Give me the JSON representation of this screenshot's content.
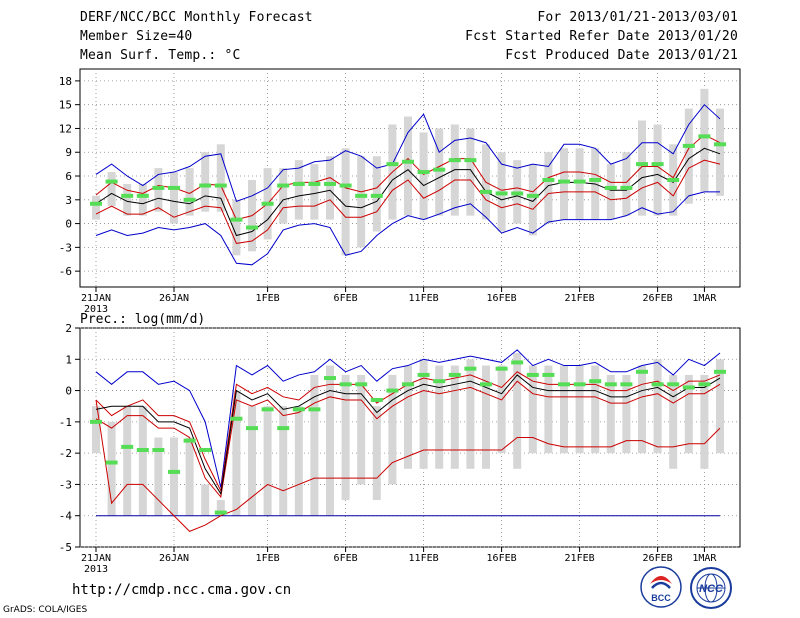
{
  "header": {
    "title": "DERF/NCC/BCC Monthly Forecast",
    "member_size": "Member Size=40",
    "variable": "Mean Surf. Temp.: °C",
    "for_range": "For 2013/01/21-2013/03/01",
    "fcst_started": "Fcst Started Refer Date 2013/01/20",
    "fcst_produced": "Fcst Produced Date 2013/01/21"
  },
  "footer": {
    "url": "http://cmdp.ncc.cma.gov.cn",
    "grads": "GrADS: COLA/IGES",
    "logo_bcc": "BCC",
    "logo_ncc": "NCC"
  },
  "colors": {
    "ensemble_max": "#0000cc",
    "ensemble_spread": "#cc0000",
    "ensemble_mean": "#000000",
    "bar": "#d6d6d6",
    "marker": "#55dd55",
    "baseline": "#0000aa"
  },
  "chart_data": [
    {
      "type": "line",
      "title": "Mean Surf. Temp.: °C",
      "ylim": [
        -8,
        19.5
      ],
      "yticks": [
        -6,
        -3,
        0,
        3,
        6,
        9,
        12,
        15,
        18
      ],
      "xlim": [
        0,
        41
      ],
      "xticks": [
        {
          "day": 0,
          "label": "21JAN"
        },
        {
          "day": 5,
          "label": "26JAN"
        },
        {
          "day": 11,
          "label": "1FEB"
        },
        {
          "day": 16,
          "label": "6FEB"
        },
        {
          "day": 21,
          "label": "11FEB"
        },
        {
          "day": 26,
          "label": "16FEB"
        },
        {
          "day": 31,
          "label": "21FEB"
        },
        {
          "day": 36,
          "label": "26FEB"
        },
        {
          "day": 39,
          "label": "1MAR"
        }
      ],
      "year_label": "2013",
      "x": [
        0,
        1,
        2,
        3,
        4,
        5,
        6,
        7,
        8,
        9,
        10,
        11,
        12,
        13,
        14,
        15,
        16,
        17,
        18,
        19,
        20,
        21,
        22,
        23,
        24,
        25,
        26,
        27,
        28,
        29,
        30,
        31,
        32,
        33,
        34,
        35,
        36,
        37,
        38,
        39,
        40
      ],
      "series": [
        {
          "name": "max",
          "values": [
            6.2,
            7.5,
            6.0,
            4.8,
            6.2,
            6.5,
            7.2,
            8.5,
            8.8,
            2.8,
            3.5,
            4.5,
            6.8,
            7.0,
            7.8,
            8.0,
            9.2,
            8.5,
            7.0,
            7.5,
            11.5,
            13.8,
            9.0,
            10.5,
            10.8,
            10.2,
            7.5,
            7.0,
            7.5,
            7.2,
            10.0,
            10.0,
            9.5,
            7.5,
            8.2,
            10.2,
            10.2,
            8.8,
            12.5,
            15.0,
            13.2
          ]
        },
        {
          "name": "upper",
          "values": [
            3.6,
            5.2,
            4.2,
            3.8,
            4.8,
            4.5,
            3.8,
            5.0,
            4.8,
            0.5,
            1.0,
            2.5,
            4.8,
            5.2,
            5.2,
            5.8,
            4.5,
            4.0,
            4.5,
            6.5,
            8.2,
            6.2,
            7.2,
            8.2,
            8.2,
            5.2,
            4.2,
            4.5,
            4.0,
            5.8,
            6.5,
            6.5,
            6.2,
            5.2,
            5.2,
            7.2,
            7.2,
            5.8,
            9.5,
            11.2,
            10.2
          ]
        },
        {
          "name": "mean",
          "values": [
            2.5,
            3.8,
            2.8,
            2.5,
            3.2,
            2.8,
            2.5,
            3.5,
            3.2,
            -1.5,
            -1.0,
            0.5,
            3.0,
            3.5,
            3.8,
            4.2,
            2.2,
            2.0,
            2.8,
            5.5,
            6.8,
            4.8,
            5.8,
            6.8,
            6.8,
            4.0,
            3.0,
            3.5,
            2.8,
            4.8,
            5.2,
            5.2,
            5.0,
            4.2,
            4.2,
            5.8,
            6.2,
            5.2,
            8.2,
            9.5,
            8.8
          ]
        },
        {
          "name": "lower",
          "values": [
            1.2,
            2.2,
            1.2,
            1.2,
            2.0,
            0.8,
            1.5,
            2.2,
            2.0,
            -2.5,
            -2.2,
            -0.8,
            2.0,
            2.2,
            2.2,
            3.0,
            0.8,
            0.8,
            1.5,
            4.2,
            5.5,
            3.2,
            4.2,
            5.5,
            5.5,
            3.0,
            2.0,
            2.5,
            1.8,
            3.8,
            4.0,
            4.0,
            4.0,
            3.0,
            3.2,
            4.5,
            5.2,
            3.5,
            7.0,
            8.0,
            7.5
          ]
        },
        {
          "name": "min",
          "values": [
            -1.5,
            -0.8,
            -1.5,
            -1.2,
            -0.5,
            -0.8,
            -0.5,
            0.0,
            -1.5,
            -5.0,
            -5.2,
            -3.8,
            -0.8,
            -0.2,
            0.0,
            -0.5,
            -4.0,
            -3.5,
            -1.5,
            0.0,
            1.0,
            0.5,
            1.2,
            2.0,
            2.5,
            0.8,
            -1.2,
            -0.5,
            -1.2,
            0.2,
            0.5,
            0.5,
            0.5,
            0.5,
            1.0,
            2.0,
            1.2,
            1.5,
            3.5,
            4.0,
            4.0
          ]
        },
        {
          "name": "bar_low",
          "values": [
            0.5,
            2.2,
            1.0,
            1.0,
            1.5,
            0.0,
            1.0,
            1.5,
            1.5,
            -4.0,
            -3.5,
            -2.0,
            0.0,
            0.5,
            0.5,
            0.5,
            -4.0,
            -3.0,
            -1.0,
            0.5,
            1.0,
            0.5,
            1.0,
            1.0,
            1.0,
            0.5,
            -1.0,
            0.0,
            -1.5,
            0.0,
            0.5,
            0.5,
            0.5,
            0.5,
            1.0,
            1.0,
            1.0,
            1.0,
            2.5,
            4.0,
            3.5
          ]
        },
        {
          "name": "bar_high",
          "values": [
            3.5,
            6.5,
            5.0,
            5.0,
            7.0,
            6.5,
            7.0,
            9.0,
            10.0,
            3.0,
            5.5,
            7.0,
            7.0,
            8.0,
            7.5,
            8.5,
            9.5,
            8.5,
            8.5,
            12.5,
            13.5,
            11.5,
            12.0,
            12.5,
            12.0,
            10.0,
            9.0,
            8.0,
            7.5,
            9.0,
            9.5,
            9.5,
            9.5,
            7.5,
            9.0,
            13.0,
            12.5,
            10.0,
            14.5,
            17.0,
            14.5
          ]
        },
        {
          "name": "marker",
          "values": [
            2.5,
            5.3,
            3.5,
            3.5,
            4.5,
            4.5,
            3.0,
            4.8,
            4.8,
            0.5,
            -0.5,
            2.5,
            4.8,
            5.0,
            5.0,
            5.0,
            4.8,
            3.5,
            3.5,
            7.5,
            7.8,
            6.5,
            6.8,
            8.0,
            8.0,
            4.0,
            3.8,
            3.8,
            3.5,
            5.5,
            5.3,
            5.3,
            5.5,
            4.5,
            4.5,
            7.5,
            7.5,
            5.5,
            9.8,
            11.0,
            10.0
          ]
        }
      ]
    },
    {
      "type": "line",
      "title": "Prec.: log(mm/d)",
      "ylim": [
        -5,
        2
      ],
      "yticks": [
        -5,
        -4,
        -3,
        -2,
        -1,
        0,
        1,
        2
      ],
      "xlim": [
        0,
        41
      ],
      "xticks": [
        {
          "day": 0,
          "label": "21JAN"
        },
        {
          "day": 5,
          "label": "26JAN"
        },
        {
          "day": 11,
          "label": "1FEB"
        },
        {
          "day": 16,
          "label": "6FEB"
        },
        {
          "day": 21,
          "label": "11FEB"
        },
        {
          "day": 26,
          "label": "16FEB"
        },
        {
          "day": 31,
          "label": "21FEB"
        },
        {
          "day": 36,
          "label": "26FEB"
        },
        {
          "day": 39,
          "label": "1MAR"
        }
      ],
      "year_label": "2013",
      "x": [
        0,
        1,
        2,
        3,
        4,
        5,
        6,
        7,
        8,
        9,
        10,
        11,
        12,
        13,
        14,
        15,
        16,
        17,
        18,
        19,
        20,
        21,
        22,
        23,
        24,
        25,
        26,
        27,
        28,
        29,
        30,
        31,
        32,
        33,
        34,
        35,
        36,
        37,
        38,
        39,
        40
      ],
      "series": [
        {
          "name": "max",
          "values": [
            0.6,
            0.2,
            0.6,
            0.6,
            0.2,
            0.3,
            0.0,
            -1.0,
            -3.1,
            0.8,
            0.5,
            0.8,
            0.3,
            0.5,
            0.6,
            1.0,
            0.6,
            0.8,
            0.3,
            0.7,
            0.8,
            1.0,
            0.9,
            1.0,
            1.1,
            1.0,
            0.9,
            1.3,
            0.8,
            1.0,
            0.8,
            0.8,
            0.9,
            0.6,
            0.6,
            0.8,
            0.9,
            0.5,
            1.0,
            0.8,
            1.2
          ]
        },
        {
          "name": "upper",
          "values": [
            -0.3,
            -0.8,
            -0.5,
            -0.3,
            -0.8,
            -0.8,
            -1.0,
            -2.2,
            -3.2,
            0.2,
            -0.1,
            0.1,
            -0.2,
            -0.3,
            0.1,
            0.2,
            0.2,
            0.2,
            -0.4,
            -0.1,
            0.2,
            0.4,
            0.3,
            0.4,
            0.5,
            0.3,
            0.1,
            0.6,
            0.3,
            0.2,
            0.2,
            0.2,
            0.2,
            0.0,
            0.0,
            0.2,
            0.3,
            0.0,
            0.3,
            0.3,
            0.5
          ]
        },
        {
          "name": "mean",
          "values": [
            -0.6,
            -0.5,
            -0.5,
            -0.5,
            -1.0,
            -1.0,
            -1.2,
            -2.5,
            -3.3,
            0.0,
            -0.3,
            -0.1,
            -0.6,
            -0.5,
            -0.2,
            0.0,
            -0.1,
            -0.1,
            -0.7,
            -0.3,
            0.0,
            0.2,
            0.1,
            0.2,
            0.3,
            0.1,
            -0.1,
            0.5,
            0.1,
            0.0,
            0.0,
            0.0,
            0.0,
            -0.2,
            -0.2,
            0.0,
            0.1,
            -0.2,
            0.1,
            0.1,
            0.4
          ]
        },
        {
          "name": "lower",
          "values": [
            -0.9,
            -1.2,
            -0.8,
            -0.8,
            -1.2,
            -1.2,
            -1.5,
            -2.8,
            -3.4,
            -0.3,
            -0.5,
            -0.3,
            -0.8,
            -0.7,
            -0.4,
            -0.2,
            -0.3,
            -0.3,
            -0.9,
            -0.5,
            -0.2,
            0.0,
            -0.1,
            0.0,
            0.1,
            -0.1,
            -0.3,
            0.3,
            -0.1,
            -0.2,
            -0.2,
            -0.2,
            -0.2,
            -0.4,
            -0.4,
            -0.2,
            -0.1,
            -0.4,
            -0.1,
            -0.1,
            0.2
          ]
        },
        {
          "name": "min",
          "values": [
            -0.3,
            -3.6,
            -3.0,
            -3.0,
            -3.5,
            -4.0,
            -4.5,
            -4.3,
            -4.0,
            -3.8,
            -3.4,
            -3.0,
            -3.2,
            -3.0,
            -2.8,
            -2.8,
            -2.8,
            -2.8,
            -2.8,
            -2.3,
            -2.1,
            -1.9,
            -1.9,
            -1.9,
            -1.9,
            -1.9,
            -1.9,
            -1.5,
            -1.5,
            -1.7,
            -1.8,
            -1.8,
            -1.8,
            -1.8,
            -1.6,
            -1.6,
            -1.8,
            -1.8,
            -1.7,
            -1.7,
            -1.2
          ]
        },
        {
          "name": "bar_low",
          "values": [
            -2.0,
            -4.0,
            -4.0,
            -4.0,
            -4.0,
            -4.0,
            -4.0,
            -4.0,
            -4.0,
            -4.0,
            -4.0,
            -4.0,
            -4.0,
            -4.0,
            -4.0,
            -4.0,
            -3.5,
            -3.0,
            -3.5,
            -3.0,
            -2.5,
            -2.5,
            -2.5,
            -2.5,
            -2.5,
            -2.5,
            -2.0,
            -2.5,
            -2.0,
            -2.0,
            -2.0,
            -2.0,
            -2.0,
            -2.0,
            -2.0,
            -2.0,
            -2.0,
            -2.5,
            -2.0,
            -2.5,
            -2.0
          ]
        },
        {
          "name": "bar_high",
          "values": [
            -0.5,
            -1.0,
            -0.5,
            -0.5,
            -1.5,
            -1.5,
            -1.5,
            -3.0,
            -3.5,
            0.0,
            -0.5,
            -0.5,
            -0.5,
            -0.5,
            0.5,
            0.8,
            0.5,
            0.5,
            -0.5,
            0.5,
            0.8,
            1.0,
            0.8,
            0.8,
            1.0,
            0.8,
            0.8,
            1.2,
            0.8,
            0.8,
            0.8,
            0.8,
            0.8,
            0.5,
            0.5,
            0.8,
            1.0,
            0.5,
            0.5,
            0.5,
            1.0
          ]
        },
        {
          "name": "marker",
          "values": [
            -1.0,
            -2.3,
            -1.8,
            -1.9,
            -1.9,
            -2.6,
            -1.6,
            -1.9,
            -3.9,
            -0.9,
            -1.2,
            -0.6,
            -1.2,
            -0.6,
            -0.6,
            0.4,
            0.2,
            0.2,
            -0.3,
            0.0,
            0.2,
            0.5,
            0.3,
            0.5,
            0.7,
            0.2,
            0.7,
            0.9,
            0.5,
            0.5,
            0.2,
            0.2,
            0.3,
            0.2,
            0.2,
            0.6,
            0.2,
            0.2,
            0.1,
            0.2,
            0.6
          ]
        }
      ]
    }
  ]
}
